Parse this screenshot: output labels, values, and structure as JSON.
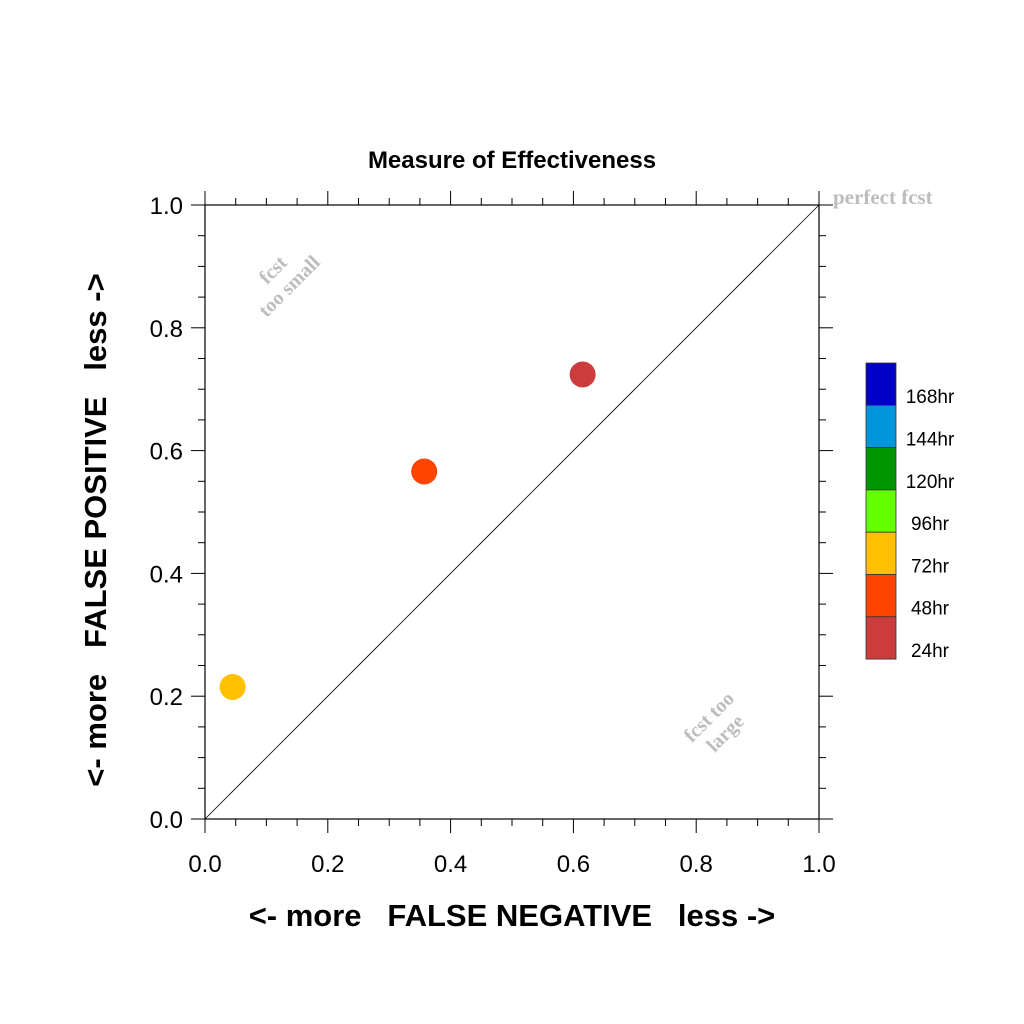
{
  "chart_data": {
    "type": "scatter",
    "title": "Measure of Effectiveness",
    "xlabel": "<- more   FALSE NEGATIVE   less ->",
    "ylabel": "<- more   FALSE POSITIVE   less ->",
    "xlim": [
      0.0,
      1.0
    ],
    "ylim": [
      0.0,
      1.0
    ],
    "x_ticks": [
      "0.0",
      "0.2",
      "0.4",
      "0.6",
      "0.8",
      "1.0"
    ],
    "y_ticks": [
      "0.0",
      "0.2",
      "0.4",
      "0.6",
      "0.8",
      "1.0"
    ],
    "grid": false,
    "diagonal_line": true,
    "annotations": {
      "perfect": "perfect fcst",
      "small_line1": "fcst",
      "small_line2": "too small",
      "large_line1": "fcst too",
      "large_line2": "large"
    },
    "annotation_color": "#bdbdbd",
    "points": [
      {
        "label": "72hr",
        "x": 0.045,
        "y": 0.215,
        "color": "#ffc000"
      },
      {
        "label": "48hr",
        "x": 0.357,
        "y": 0.566,
        "color": "#ff4500"
      },
      {
        "label": "24hr",
        "x": 0.615,
        "y": 0.724,
        "color": "#cd3c3c"
      }
    ],
    "legend": {
      "position": "right",
      "entries": [
        {
          "label": "168hr",
          "color": "#0000c8"
        },
        {
          "label": "144hr",
          "color": "#0096dc"
        },
        {
          "label": "120hr",
          "color": "#009600"
        },
        {
          "label": "96hr",
          "color": "#64ff00"
        },
        {
          "label": "72hr",
          "color": "#ffc000"
        },
        {
          "label": "48hr",
          "color": "#ff4500"
        },
        {
          "label": "24hr",
          "color": "#cd3c3c"
        }
      ]
    }
  }
}
